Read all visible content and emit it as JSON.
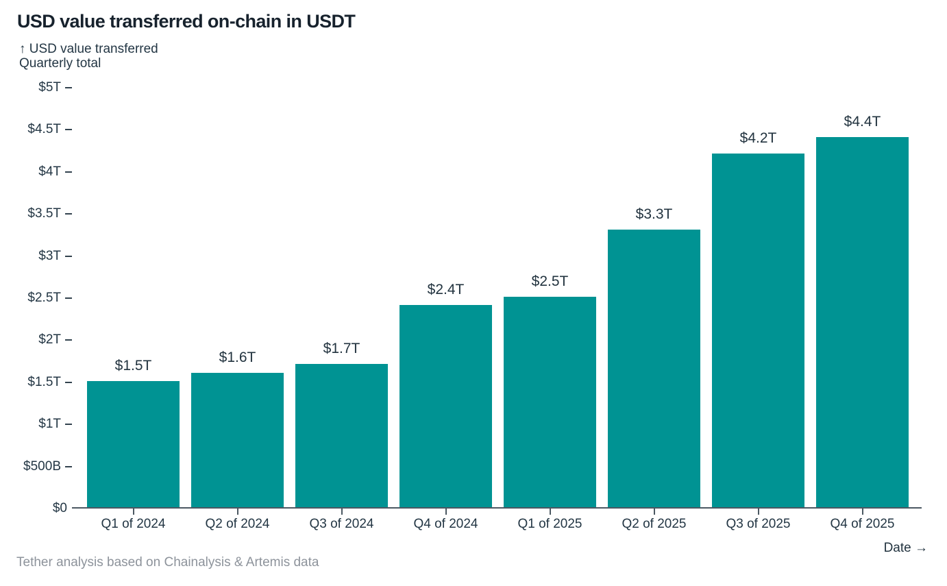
{
  "page": {
    "title": "USD value transferred on-chain in USDT"
  },
  "axis_note": {
    "line1": "↑ USD value transferred",
    "line2": "Quarterly total"
  },
  "footer": {
    "source": "Tether analysis based on Chainalysis & Artemis data",
    "x_axis_label": "Date →"
  },
  "colors": {
    "bar": "#009393",
    "title_text": "#17222d",
    "axis_text": "#233644",
    "axis_line": "#4b5862",
    "muted_text": "#8d939b",
    "background": "#ffffff"
  },
  "chart_data": {
    "type": "bar",
    "title": "USD value transferred on-chain in USDT",
    "subtitle": "USD value transferred — Quarterly total",
    "xlabel": "Date",
    "ylabel": "USD value transferred",
    "unit": "USD (T = trillion, B = billion)",
    "categories": [
      "Q1 of 2024",
      "Q2 of 2024",
      "Q3 of 2024",
      "Q4 of 2024",
      "Q1 of 2025",
      "Q2 of 2025",
      "Q3 of 2025",
      "Q4 of 2025"
    ],
    "values": [
      1.5,
      1.6,
      1.7,
      2.4,
      2.5,
      3.3,
      4.2,
      4.4
    ],
    "value_labels": [
      "$1.5T",
      "$1.6T",
      "$1.7T",
      "$2.4T",
      "$2.5T",
      "$3.3T",
      "$4.2T",
      "$4.4T"
    ],
    "ylim": [
      0,
      5
    ],
    "yticks": [
      {
        "label": "$5T",
        "value": 5.0
      },
      {
        "label": "$4.5T",
        "value": 4.5
      },
      {
        "label": "$4T",
        "value": 4.0
      },
      {
        "label": "$3.5T",
        "value": 3.5
      },
      {
        "label": "$3T",
        "value": 3.0
      },
      {
        "label": "$2.5T",
        "value": 2.5
      },
      {
        "label": "$2T",
        "value": 2.0
      },
      {
        "label": "$1.5T",
        "value": 1.5
      },
      {
        "label": "$1T",
        "value": 1.0
      },
      {
        "label": "$500B",
        "value": 0.5
      },
      {
        "label": "$0",
        "value": 0.0
      }
    ],
    "grid": false,
    "legend": null,
    "bar_color": "#009393"
  }
}
